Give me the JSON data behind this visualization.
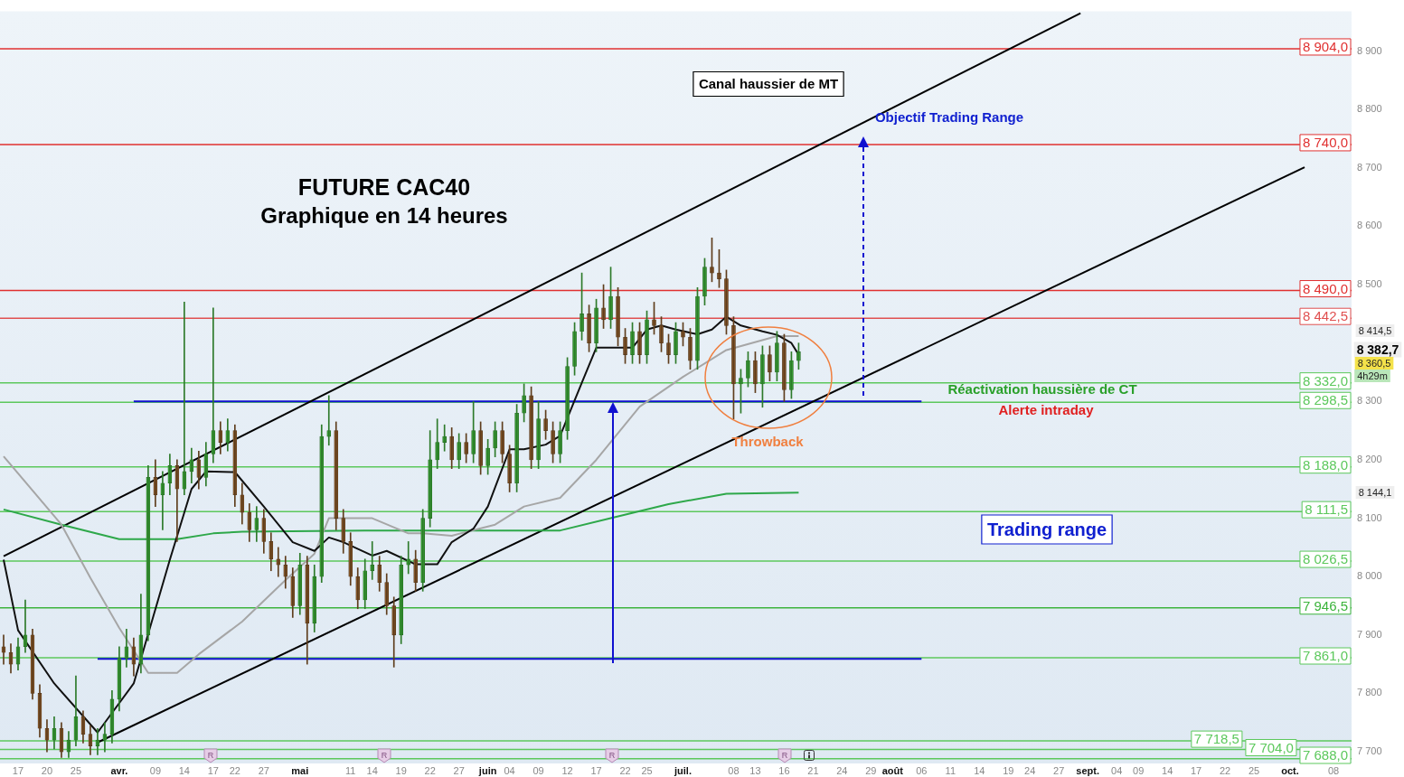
{
  "chart_data": {
    "type": "candlestick",
    "title": "FUTURE CAC40",
    "subtitle": "Graphique en 14 heures",
    "categories": [
      null,
      null,
      "17",
      null,
      null,
      null,
      "20",
      null,
      null,
      null,
      "25",
      null,
      null,
      null,
      null,
      null,
      "avr.",
      null,
      null,
      null,
      null,
      "09",
      null,
      null,
      null,
      "14",
      null,
      null,
      null,
      "17",
      null,
      null,
      "22",
      null,
      null,
      null,
      "27",
      null,
      null,
      null,
      null,
      "mai",
      null,
      null,
      null,
      null,
      null,
      null,
      "11",
      null,
      null,
      "14",
      null,
      null,
      null,
      "19",
      null,
      null,
      null,
      "22",
      null,
      null,
      null,
      "27",
      null,
      null,
      null,
      "juin",
      null,
      null,
      "04",
      null,
      null,
      null,
      "09",
      null,
      null,
      null,
      "12",
      null,
      null,
      null,
      "17",
      null,
      null,
      null,
      "22",
      null,
      null,
      "25",
      null,
      null,
      null,
      null,
      "juil.",
      null,
      null,
      null,
      null,
      null,
      null,
      "08",
      null,
      null,
      "13",
      null,
      null,
      null,
      "16",
      null,
      null,
      null,
      "21",
      null,
      null,
      null,
      "24",
      null,
      null,
      null,
      "29",
      null,
      null,
      "août",
      null,
      null,
      null,
      "06",
      null,
      null,
      null,
      "11",
      null,
      null,
      null,
      "14",
      null,
      null,
      null,
      "19",
      null,
      null,
      "24",
      null,
      null,
      null,
      "27",
      null,
      null,
      null,
      "sept.",
      null,
      null,
      null,
      "04",
      null,
      null,
      "09",
      null,
      null,
      null,
      "14",
      null,
      null,
      null,
      "17",
      null,
      null,
      null,
      "22",
      null,
      null,
      null,
      "25",
      null,
      null,
      null,
      null,
      "oct.",
      null,
      null,
      null,
      null,
      null,
      "08",
      null,
      null
    ],
    "ohlc": [
      [
        7880,
        7900,
        7850,
        7870
      ],
      [
        7870,
        7885,
        7835,
        7850
      ],
      [
        7850,
        7895,
        7840,
        7880
      ],
      [
        7880,
        7960,
        7870,
        7900
      ],
      [
        7900,
        7910,
        7790,
        7800
      ],
      [
        7800,
        7815,
        7725,
        7740
      ],
      [
        7740,
        7755,
        7700,
        7720
      ],
      [
        7720,
        7760,
        7705,
        7740
      ],
      [
        7740,
        7750,
        7690,
        7700
      ],
      [
        7700,
        7735,
        7690,
        7720
      ],
      [
        7720,
        7830,
        7710,
        7760
      ],
      [
        7760,
        7770,
        7715,
        7730
      ],
      [
        7730,
        7745,
        7695,
        7710
      ],
      [
        7710,
        7740,
        7695,
        7720
      ],
      [
        7720,
        7750,
        7700,
        7730
      ],
      [
        7730,
        7805,
        7715,
        7790
      ],
      [
        7790,
        7880,
        7770,
        7860
      ],
      [
        7860,
        7910,
        7845,
        7880
      ],
      [
        7880,
        7895,
        7830,
        7850
      ],
      [
        7850,
        7970,
        7835,
        7900
      ],
      [
        7900,
        8190,
        7890,
        8170
      ],
      [
        8170,
        8200,
        8120,
        8140
      ],
      [
        8140,
        8180,
        8080,
        8160
      ],
      [
        8160,
        8210,
        8140,
        8190
      ],
      [
        8190,
        8200,
        8060,
        8150
      ],
      [
        8150,
        8470,
        8140,
        8180
      ],
      [
        8180,
        8220,
        8160,
        8200
      ],
      [
        8200,
        8215,
        8150,
        8170
      ],
      [
        8170,
        8230,
        8155,
        8210
      ],
      [
        8210,
        8460,
        8195,
        8250
      ],
      [
        8250,
        8265,
        8210,
        8230
      ],
      [
        8230,
        8270,
        8215,
        8250
      ],
      [
        8250,
        8260,
        8120,
        8140
      ],
      [
        8140,
        8160,
        8090,
        8110
      ],
      [
        8110,
        8125,
        8060,
        8080
      ],
      [
        8080,
        8120,
        8060,
        8100
      ],
      [
        8100,
        8115,
        8040,
        8060
      ],
      [
        8060,
        8075,
        8010,
        8030
      ],
      [
        8030,
        8050,
        8000,
        8020
      ],
      [
        8020,
        8035,
        7980,
        8000
      ],
      [
        8000,
        8015,
        7930,
        7950
      ],
      [
        7950,
        8040,
        7935,
        8020
      ],
      [
        8020,
        8035,
        7850,
        7920
      ],
      [
        7920,
        8020,
        7905,
        8000
      ],
      [
        8000,
        8260,
        7990,
        8240
      ],
      [
        8240,
        8310,
        8225,
        8250
      ],
      [
        8250,
        8265,
        8080,
        8100
      ],
      [
        8100,
        8115,
        8040,
        8060
      ],
      [
        8060,
        8075,
        7985,
        8000
      ],
      [
        8000,
        8015,
        7945,
        7960
      ],
      [
        7960,
        8030,
        7945,
        8010
      ],
      [
        8010,
        8060,
        7995,
        8020
      ],
      [
        8020,
        8035,
        7975,
        7990
      ],
      [
        7990,
        8005,
        7935,
        7950
      ],
      [
        7950,
        7965,
        7845,
        7900
      ],
      [
        7900,
        8035,
        7885,
        8020
      ],
      [
        8020,
        8060,
        8005,
        8030
      ],
      [
        8030,
        8045,
        7975,
        7990
      ],
      [
        7990,
        8115,
        7975,
        8100
      ],
      [
        8100,
        8250,
        8085,
        8200
      ],
      [
        8200,
        8270,
        8185,
        8230
      ],
      [
        8230,
        8260,
        8215,
        8240
      ],
      [
        8240,
        8255,
        8185,
        8200
      ],
      [
        8200,
        8245,
        8185,
        8230
      ],
      [
        8230,
        8245,
        8195,
        8210
      ],
      [
        8210,
        8300,
        8195,
        8250
      ],
      [
        8250,
        8265,
        8175,
        8190
      ],
      [
        8190,
        8235,
        8175,
        8220
      ],
      [
        8220,
        8265,
        8205,
        8250
      ],
      [
        8250,
        8265,
        8195,
        8210
      ],
      [
        8210,
        8225,
        8145,
        8160
      ],
      [
        8160,
        8295,
        8145,
        8280
      ],
      [
        8280,
        8330,
        8265,
        8310
      ],
      [
        8310,
        8325,
        8185,
        8200
      ],
      [
        8200,
        8300,
        8185,
        8270
      ],
      [
        8270,
        8285,
        8235,
        8250
      ],
      [
        8250,
        8265,
        8195,
        8210
      ],
      [
        8210,
        8265,
        8195,
        8250
      ],
      [
        8250,
        8375,
        8235,
        8360
      ],
      [
        8360,
        8435,
        8345,
        8420
      ],
      [
        8420,
        8520,
        8405,
        8450
      ],
      [
        8450,
        8465,
        8385,
        8400
      ],
      [
        8400,
        8475,
        8385,
        8460
      ],
      [
        8460,
        8500,
        8425,
        8440
      ],
      [
        8440,
        8530,
        8425,
        8480
      ],
      [
        8480,
        8495,
        8395,
        8410
      ],
      [
        8410,
        8425,
        8365,
        8380
      ],
      [
        8380,
        8435,
        8365,
        8420
      ],
      [
        8420,
        8435,
        8365,
        8380
      ],
      [
        8380,
        8455,
        8365,
        8440
      ],
      [
        8440,
        8470,
        8415,
        8430
      ],
      [
        8430,
        8445,
        8385,
        8400
      ],
      [
        8400,
        8415,
        8365,
        8380
      ],
      [
        8380,
        8435,
        8365,
        8420
      ],
      [
        8420,
        8435,
        8395,
        8410
      ],
      [
        8410,
        8425,
        8355,
        8370
      ],
      [
        8370,
        8495,
        8355,
        8480
      ],
      [
        8480,
        8545,
        8465,
        8530
      ],
      [
        8530,
        8580,
        8505,
        8520
      ],
      [
        8520,
        8560,
        8495,
        8510
      ],
      [
        8510,
        8525,
        8415,
        8430
      ],
      [
        8430,
        8445,
        8270,
        8330
      ],
      [
        8330,
        8355,
        8280,
        8340
      ],
      [
        8340,
        8385,
        8325,
        8370
      ],
      [
        8370,
        8385,
        8315,
        8330
      ],
      [
        8330,
        8395,
        8290,
        8380
      ],
      [
        8380,
        8395,
        8335,
        8350
      ],
      [
        8350,
        8420,
        8335,
        8400
      ],
      [
        8400,
        8415,
        8300,
        8320
      ],
      [
        8320,
        8385,
        8305,
        8370
      ],
      [
        8370,
        8400,
        8355,
        8385
      ],
      null,
      null,
      null,
      null,
      null,
      null,
      null,
      null,
      null,
      null,
      null,
      null,
      null,
      null,
      null,
      null,
      null,
      null,
      null,
      null,
      null,
      null,
      null,
      null,
      null,
      null,
      null,
      null,
      null,
      null,
      null,
      null,
      null,
      null,
      null,
      null,
      null,
      null,
      null,
      null,
      null,
      null,
      null,
      null,
      null,
      null,
      null,
      null,
      null,
      null,
      null,
      null,
      null,
      null,
      null,
      null,
      null,
      null,
      null,
      null,
      null,
      null,
      null,
      null,
      null,
      null,
      null,
      null,
      null,
      null,
      null,
      null,
      null,
      null,
      null,
      null
    ],
    "series": [
      {
        "type": "line",
        "color": "#111111",
        "values": [
          8029,
          null,
          7908,
          null,
          null,
          null,
          null,
          7817,
          null,
          null,
          null,
          null,
          null,
          7733,
          null,
          null,
          null,
          null,
          7817,
          null,
          null,
          null,
          null,
          8029,
          null,
          null,
          8150,
          null,
          8180,
          null,
          null,
          null,
          8179,
          null,
          null,
          null,
          8120,
          null,
          null,
          null,
          8059,
          null,
          null,
          8044,
          null,
          8067,
          null,
          8059,
          null,
          null,
          null,
          8036,
          null,
          8044,
          null,
          null,
          null,
          8021,
          null,
          null,
          8021,
          null,
          8059,
          null,
          null,
          8082,
          null,
          8120,
          null,
          null,
          8218,
          null,
          8218,
          null,
          null,
          8226,
          null,
          8241,
          null,
          null,
          8332,
          null,
          8392,
          null,
          null,
          8392,
          null,
          8392,
          null,
          8423,
          null,
          8430,
          null,
          8423,
          null,
          null,
          8415,
          null,
          8423,
          null,
          8445,
          null,
          8430,
          null,
          null,
          8420,
          null,
          8414,
          null,
          8400,
          8380,
          null,
          null,
          null,
          null,
          null,
          null,
          null,
          null,
          null,
          null,
          null,
          null,
          null,
          null,
          null,
          null,
          null,
          null,
          null,
          null,
          null,
          null,
          null,
          null,
          null,
          null,
          null,
          null,
          null,
          null,
          null,
          null,
          null,
          null,
          null,
          null,
          null,
          null,
          null,
          null,
          null,
          null,
          null,
          null,
          null,
          null,
          null,
          null,
          null,
          null,
          null,
          null,
          null,
          null,
          null,
          null,
          null,
          null,
          null,
          null,
          null,
          null,
          null,
          null,
          null,
          null,
          null,
          null,
          null,
          null,
          null,
          null,
          null,
          null,
          null,
          null
        ]
      },
      {
        "type": "line",
        "color": "#a6a6a6",
        "values": [
          8206,
          null,
          null,
          null,
          null,
          null,
          null,
          null,
          8089,
          null,
          null,
          null,
          7998,
          null,
          null,
          null,
          7912,
          null,
          null,
          null,
          7835,
          null,
          null,
          null,
          7835,
          null,
          null,
          7867,
          null,
          null,
          null,
          null,
          null,
          7923,
          null,
          null,
          null,
          null,
          null,
          7994,
          null,
          null,
          null,
          8039,
          null,
          8100,
          null,
          null,
          null,
          null,
          null,
          8100,
          null,
          null,
          null,
          null,
          8074,
          null,
          8074,
          null,
          null,
          null,
          8070,
          null,
          null,
          null,
          null,
          null,
          8089,
          null,
          null,
          null,
          8120,
          null,
          null,
          null,
          null,
          8135,
          null,
          null,
          null,
          null,
          8200,
          null,
          null,
          null,
          null,
          null,
          8291,
          null,
          null,
          null,
          null,
          null,
          8342,
          null,
          null,
          null,
          null,
          null,
          8388,
          null,
          null,
          null,
          null,
          null,
          null,
          8412,
          null,
          null,
          8412,
          null,
          null,
          null,
          null,
          null,
          null,
          null,
          null,
          null,
          null,
          null,
          null,
          null,
          null,
          null,
          null,
          null,
          null,
          null,
          null,
          null,
          null,
          null,
          null,
          null,
          null,
          null,
          null,
          null,
          null,
          null,
          null,
          null,
          null,
          null,
          null,
          null,
          null,
          null,
          null,
          null,
          null,
          null,
          null,
          null,
          null,
          null,
          null,
          null,
          null,
          null,
          null,
          null,
          null,
          null,
          null,
          null,
          null,
          null,
          null,
          null,
          null,
          null,
          null,
          null,
          null,
          null,
          null,
          null,
          null,
          null,
          null,
          null,
          null,
          null,
          null
        ]
      },
      {
        "type": "line",
        "color": "#2ea84a",
        "values": [
          8115,
          null,
          null,
          null,
          null,
          null,
          null,
          null,
          8089,
          null,
          null,
          null,
          null,
          null,
          null,
          null,
          8064,
          null,
          null,
          null,
          null,
          null,
          null,
          null,
          8064,
          null,
          null,
          null,
          null,
          8074,
          null,
          null,
          null,
          8077,
          null,
          null,
          null,
          null,
          null,
          null,
          null,
          null,
          null,
          null,
          null,
          null,
          null,
          null,
          null,
          null,
          8079,
          null,
          null,
          null,
          null,
          null,
          null,
          null,
          null,
          null,
          null,
          null,
          null,
          null,
          null,
          null,
          null,
          null,
          null,
          null,
          null,
          null,
          null,
          null,
          null,
          null,
          null,
          8079,
          null,
          null,
          null,
          null,
          null,
          null,
          8100,
          null,
          null,
          null,
          null,
          null,
          null,
          null,
          8124,
          null,
          null,
          null,
          null,
          null,
          null,
          null,
          8142,
          null,
          null,
          null,
          null,
          null,
          null,
          null,
          null,
          null,
          8144,
          null,
          null,
          null,
          null,
          null,
          null,
          null,
          null,
          null,
          null,
          null,
          null,
          null,
          null,
          null,
          null,
          null,
          null,
          null,
          null,
          null,
          null,
          null,
          null,
          null,
          null,
          null,
          null,
          null,
          null,
          null,
          null,
          null,
          null,
          null,
          null,
          null,
          null,
          null,
          null,
          null,
          null,
          null,
          null,
          null,
          null,
          null,
          null,
          null,
          null,
          null,
          null,
          null,
          null,
          null,
          null,
          null,
          null,
          null,
          null,
          null,
          null,
          null,
          null,
          null,
          null,
          null,
          null,
          null,
          null,
          null,
          null,
          null,
          null,
          null,
          null
        ]
      },
      {
        "type": "line",
        "color": "#000000",
        "values": [
          8035,
          null,
          null,
          null,
          null,
          null,
          null,
          null,
          null,
          null,
          null,
          null,
          null,
          null,
          null,
          null,
          null,
          null,
          null,
          null,
          null,
          null,
          null,
          null,
          null,
          null,
          null,
          null,
          null,
          null,
          null,
          null,
          null,
          null,
          null,
          null,
          null,
          null,
          null,
          null,
          null,
          null,
          null,
          null,
          null,
          null,
          null,
          null,
          null,
          null,
          null,
          null,
          null,
          null,
          null,
          null,
          null,
          null,
          null,
          null,
          null,
          null,
          null,
          null,
          null,
          null,
          null,
          null,
          null,
          null,
          null,
          null,
          null,
          null,
          null,
          null,
          null,
          null,
          null,
          null,
          null,
          null,
          null,
          null,
          null,
          null,
          null,
          null,
          null,
          null,
          null,
          null,
          null,
          null,
          null,
          null,
          null,
          null,
          null,
          null,
          null,
          null,
          null,
          null,
          null,
          null,
          null,
          null,
          null,
          null,
          null,
          null,
          null,
          null,
          null,
          null,
          null,
          null,
          null,
          null,
          null,
          null,
          null,
          null,
          null,
          null,
          null,
          null,
          null,
          null,
          null,
          null,
          null,
          null,
          null,
          null,
          null,
          null,
          null,
          null,
          null,
          null,
          null,
          null,
          null,
          null,
          null,
          null,
          null,
          8965,
          null,
          null,
          null,
          null,
          null,
          null,
          null,
          null,
          null,
          null,
          null,
          null,
          null,
          null,
          null,
          null,
          null,
          null,
          null,
          null,
          null,
          null,
          null,
          null,
          null,
          null,
          null,
          null,
          null,
          null,
          null,
          null,
          null,
          null,
          null,
          null,
          null
        ]
      },
      {
        "type": "line",
        "color": "#000000",
        "values": [
          null,
          null,
          null,
          null,
          null,
          null,
          null,
          null,
          null,
          null,
          null,
          null,
          null,
          7716,
          null,
          null,
          null,
          null,
          null,
          null,
          null,
          null,
          null,
          null,
          null,
          null,
          null,
          null,
          null,
          null,
          null,
          null,
          null,
          null,
          null,
          null,
          null,
          null,
          null,
          null,
          null,
          null,
          null,
          null,
          null,
          null,
          null,
          null,
          null,
          null,
          null,
          null,
          null,
          null,
          null,
          null,
          null,
          null,
          null,
          null,
          null,
          null,
          null,
          null,
          null,
          null,
          null,
          null,
          null,
          null,
          null,
          null,
          null,
          null,
          null,
          null,
          null,
          null,
          null,
          null,
          null,
          null,
          null,
          null,
          null,
          null,
          null,
          null,
          null,
          null,
          null,
          null,
          null,
          null,
          null,
          null,
          null,
          null,
          null,
          null,
          null,
          null,
          null,
          null,
          null,
          null,
          null,
          null,
          null,
          null,
          null,
          null,
          null,
          null,
          null,
          null,
          null,
          null,
          null,
          null,
          null,
          null,
          null,
          null,
          null,
          null,
          null,
          null,
          null,
          null,
          null,
          null,
          null,
          null,
          null,
          null,
          null,
          null,
          null,
          null,
          null,
          null,
          null,
          null,
          null,
          null,
          null,
          null,
          null,
          null,
          null,
          null,
          null,
          null,
          null,
          null,
          null,
          null,
          null,
          null,
          null,
          null,
          null,
          null,
          null,
          null,
          null,
          null,
          null,
          null,
          null,
          null,
          null,
          null,
          null,
          null,
          null,
          null,
          null,
          null,
          8701,
          null,
          null,
          null,
          null,
          null,
          null
        ]
      },
      {
        "type": "line",
        "color": "#1010d0",
        "values": [
          null,
          null,
          null,
          null,
          null,
          null,
          null,
          null,
          null,
          null,
          null,
          null,
          null,
          null,
          null,
          null,
          null,
          null,
          8300,
          null,
          null,
          null,
          null,
          null,
          null,
          null,
          null,
          null,
          null,
          null,
          null,
          null,
          null,
          null,
          null,
          null,
          null,
          null,
          null,
          null,
          null,
          null,
          null,
          null,
          null,
          null,
          null,
          null,
          null,
          null,
          null,
          null,
          null,
          null,
          null,
          null,
          null,
          null,
          null,
          null,
          null,
          null,
          null,
          null,
          null,
          null,
          null,
          null,
          null,
          null,
          null,
          null,
          null,
          null,
          null,
          null,
          null,
          null,
          null,
          null,
          null,
          null,
          null,
          null,
          null,
          null,
          null,
          null,
          null,
          null,
          null,
          null,
          null,
          null,
          null,
          null,
          null,
          null,
          null,
          null,
          null,
          null,
          null,
          null,
          null,
          null,
          null,
          null,
          null,
          null,
          null,
          null,
          null,
          null,
          null,
          null,
          null,
          null,
          null,
          null,
          null,
          null,
          null,
          null,
          null,
          null,
          null,
          8300,
          null,
          null,
          null,
          null,
          null,
          null,
          null,
          null,
          null,
          null,
          null,
          null,
          null,
          null,
          null,
          null,
          null,
          null,
          null,
          null,
          null,
          null,
          null,
          null,
          null,
          null,
          null,
          null,
          null,
          null,
          null,
          null,
          null,
          null,
          null,
          null,
          null,
          null,
          null,
          null,
          null,
          null,
          null,
          null,
          null,
          null,
          null,
          null,
          null,
          null,
          null,
          null,
          null,
          null,
          null,
          null,
          null,
          null,
          null
        ]
      },
      {
        "type": "line",
        "color": "#1010d0",
        "values": [
          null,
          null,
          null,
          null,
          null,
          null,
          null,
          null,
          null,
          null,
          null,
          null,
          null,
          7859,
          null,
          null,
          null,
          null,
          null,
          null,
          null,
          null,
          null,
          null,
          null,
          null,
          null,
          null,
          null,
          null,
          null,
          null,
          null,
          null,
          null,
          null,
          null,
          null,
          null,
          null,
          null,
          null,
          null,
          null,
          null,
          null,
          null,
          null,
          null,
          null,
          null,
          null,
          null,
          null,
          null,
          null,
          null,
          null,
          null,
          null,
          null,
          null,
          null,
          null,
          null,
          null,
          null,
          null,
          null,
          null,
          null,
          null,
          null,
          null,
          null,
          null,
          null,
          null,
          null,
          null,
          null,
          null,
          null,
          null,
          null,
          null,
          null,
          null,
          null,
          null,
          null,
          null,
          null,
          null,
          null,
          null,
          null,
          null,
          null,
          null,
          null,
          null,
          null,
          null,
          null,
          null,
          null,
          null,
          null,
          null,
          null,
          null,
          null,
          null,
          null,
          null,
          null,
          null,
          null,
          null,
          null,
          null,
          null,
          null,
          null,
          null,
          null,
          7859,
          null,
          null,
          null,
          null,
          null,
          null,
          null,
          null,
          null,
          null,
          null,
          null,
          null,
          null,
          null,
          null,
          null,
          null,
          null,
          null,
          null,
          null,
          null,
          null,
          null,
          null,
          null,
          null,
          null,
          null,
          null,
          null,
          null,
          null,
          null,
          null,
          null,
          null,
          null,
          null,
          null,
          null,
          null,
          null,
          null,
          null,
          null,
          null,
          null,
          null,
          null,
          null,
          null,
          null,
          null,
          null,
          null,
          null,
          null
        ]
      }
    ],
    "ref_lines": [
      {
        "axis": "y",
        "value": 8904,
        "label": "8 904,0",
        "color": "#e03030"
      },
      {
        "axis": "y",
        "value": 8740,
        "label": "8 740,0",
        "color": "#e03030"
      },
      {
        "axis": "y",
        "value": 8490,
        "label": "8 490,0",
        "color": "#e03030"
      },
      {
        "axis": "y",
        "value": 8442.5,
        "label": "8 442,5",
        "color": "#e05050"
      },
      {
        "axis": "y",
        "value": 8332,
        "label": "8 332,0",
        "color": "#5cc85c"
      },
      {
        "axis": "y",
        "value": 8298.5,
        "label": "8 298,5",
        "color": "#5cc85c"
      },
      {
        "axis": "y",
        "value": 8188,
        "label": "8 188,0",
        "color": "#5cc85c"
      },
      {
        "axis": "y",
        "value": 8111.5,
        "label": "8 111,5",
        "color": "#5cc85c"
      },
      {
        "axis": "y",
        "value": 8026.5,
        "label": "8 026,5",
        "color": "#5cc85c"
      },
      {
        "axis": "y",
        "value": 7946.5,
        "label": "7 946,5",
        "color": "#3cb43c"
      },
      {
        "axis": "y",
        "value": 7861,
        "label": "7 861,0",
        "color": "#5cc85c"
      },
      {
        "axis": "y",
        "value": 7718.5,
        "label": "7 718,5",
        "color": "#5cc85c"
      },
      {
        "axis": "y",
        "value": 7704,
        "label": "7 704,0",
        "color": "#5cc85c"
      },
      {
        "axis": "y",
        "value": 7688,
        "label": "7 688,0",
        "color": "#5cc85c"
      }
    ],
    "annotations": [
      "Canal haussier de MT",
      "Objectif Trading Range",
      "Réactivation haussière de CT",
      "Alerte intraday",
      "Throwback",
      "Trading range",
      "4h29m",
      "8 414,5",
      "8 382,7",
      "8 360,5",
      "8 144,1",
      "R",
      "R",
      "R",
      "R"
    ],
    "ylim": [
      7680,
      8968
    ],
    "yticks": [
      {
        "value": 7700,
        "label": "7 700"
      },
      {
        "value": 7800,
        "label": "7 800"
      },
      {
        "value": 7900,
        "label": "7 900"
      },
      {
        "value": 8000,
        "label": "8 000"
      },
      {
        "value": 8100,
        "label": "8 100"
      },
      {
        "value": 8200,
        "label": "8 200"
      },
      {
        "value": 8300,
        "label": "8 300"
      },
      {
        "value": 8500,
        "label": "8 500"
      },
      {
        "value": 8600,
        "label": "8 600"
      },
      {
        "value": 8700,
        "label": "8 700"
      },
      {
        "value": 8800,
        "label": "8 800"
      },
      {
        "value": 8900,
        "label": "8 900"
      }
    ],
    "grid": false,
    "legend": false,
    "marker": "none"
  }
}
